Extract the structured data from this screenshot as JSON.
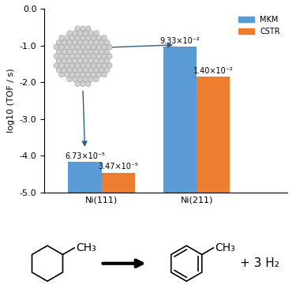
{
  "chart_data": {
    "type": "bar",
    "y_label": "log10 (TOF / s)",
    "categories": [
      "Ni(111)",
      "Ni(211)"
    ],
    "series": [
      {
        "name": "MKM",
        "color": "#5B9BD5",
        "values": [
          -4.172,
          -1.03
        ],
        "value_labels": [
          "6.73×10⁻⁵",
          "9.33×10⁻²"
        ]
      },
      {
        "name": "CSTR",
        "color": "#ED7D31",
        "values": [
          -4.46,
          -1.854
        ],
        "value_labels": [
          "3.47×10⁻⁵",
          "1.40×10⁻²"
        ]
      }
    ],
    "ylim": [
      -5,
      0
    ],
    "yticks": [
      {
        "value": -5,
        "label": "-5.0"
      },
      {
        "value": -4,
        "label": "-4.0"
      },
      {
        "value": -3,
        "label": "-3.0"
      },
      {
        "value": -2,
        "label": "-2.0"
      },
      {
        "value": -1,
        "label": "-1.0"
      },
      {
        "value": 0,
        "label": "0.0"
      }
    ],
    "legend": "upper right",
    "data_labels": true
  },
  "reaction": {
    "reactant_substituent": "CH₃",
    "product_substituent": "CH₃",
    "coproduct": "+ 3 H₂"
  }
}
